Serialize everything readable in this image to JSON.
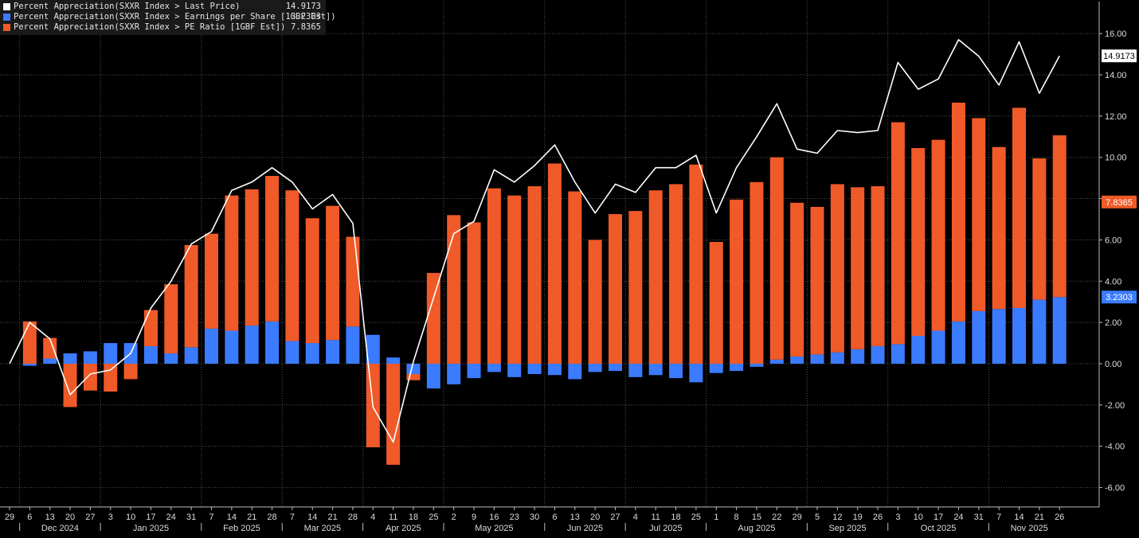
{
  "legend": [
    {
      "label": "Percent Appreciation(SXXR Index > Last Price)",
      "value": "14.9173",
      "color": "#ffffff"
    },
    {
      "label": "Percent Appreciation(SXXR Index > Earnings per Share [1GBF Est])",
      "value": "3.2303",
      "color": "#3b7bff"
    },
    {
      "label": "Percent Appreciation(SXXR Index > PE Ratio [1GBF Est])",
      "value": "7.8365",
      "color": "#ef5a28"
    }
  ],
  "chart_data": {
    "type": "bar",
    "stacked": true,
    "x": [
      "29",
      "6",
      "13",
      "20",
      "27",
      "3",
      "10",
      "17",
      "24",
      "31",
      "7",
      "14",
      "21",
      "28",
      "7",
      "14",
      "21",
      "28",
      "4",
      "11",
      "18",
      "25",
      "2",
      "9",
      "16",
      "23",
      "30",
      "6",
      "13",
      "20",
      "27",
      "4",
      "11",
      "18",
      "25",
      "1",
      "8",
      "15",
      "22",
      "29",
      "5",
      "12",
      "19",
      "26",
      "3",
      "10",
      "17",
      "24",
      "31",
      "7",
      "14",
      "21",
      "26"
    ],
    "month_labels": [
      {
        "label": "Dec 2024",
        "start": 1,
        "end": 4
      },
      {
        "label": "Jan 2025",
        "start": 5,
        "end": 9
      },
      {
        "label": "Feb 2025",
        "start": 10,
        "end": 13
      },
      {
        "label": "Mar 2025",
        "start": 14,
        "end": 17
      },
      {
        "label": "Apr 2025",
        "start": 18,
        "end": 21
      },
      {
        "label": "May 2025",
        "start": 22,
        "end": 26
      },
      {
        "label": "Jun 2025",
        "start": 27,
        "end": 30
      },
      {
        "label": "Jul 2025",
        "start": 31,
        "end": 34
      },
      {
        "label": "Aug 2025",
        "start": 35,
        "end": 39
      },
      {
        "label": "Sep 2025",
        "start": 40,
        "end": 43
      },
      {
        "label": "Oct 2025",
        "start": 44,
        "end": 48
      },
      {
        "label": "Nov 2025",
        "start": 49,
        "end": 52
      }
    ],
    "ylim": [
      -6.8,
      17.5
    ],
    "yticks": [
      "-6.00",
      "-4.00",
      "-2.00",
      "0.00",
      "2.00",
      "4.00",
      "6.00",
      "8.00",
      "10.00",
      "12.00",
      "14.00",
      "16.00"
    ],
    "series": [
      {
        "name": "Percent Appreciation(SXXR Index > Last Price)",
        "kind": "line",
        "color": "#ffffff",
        "values": [
          0,
          2.0,
          1.2,
          -1.5,
          -0.5,
          -0.3,
          0.5,
          2.7,
          4.0,
          5.8,
          6.4,
          8.4,
          8.8,
          9.5,
          8.8,
          7.5,
          8.2,
          6.8,
          -2.1,
          -3.8,
          0.1,
          3.2,
          6.3,
          6.9,
          9.4,
          8.8,
          9.6,
          10.6,
          8.8,
          7.3,
          8.7,
          8.3,
          9.5,
          9.5,
          10.1,
          7.3,
          9.5,
          11.0,
          12.6,
          10.4,
          10.2,
          11.3,
          11.2,
          11.3,
          14.6,
          13.3,
          13.8,
          15.7,
          14.9,
          13.5,
          15.6,
          13.1,
          14.9173
        ]
      },
      {
        "name": "Percent Appreciation(SXXR Index > Earnings per Share [1GBF Est])",
        "kind": "bar",
        "color": "#3b7bff",
        "values": [
          0,
          -0.1,
          0.25,
          0.5,
          0.6,
          1.0,
          1.0,
          0.85,
          0.5,
          0.8,
          1.7,
          1.6,
          1.85,
          2.05,
          1.1,
          1.0,
          1.15,
          1.8,
          1.4,
          0.3,
          -0.5,
          -1.2,
          -1.0,
          -0.7,
          -0.4,
          -0.65,
          -0.5,
          -0.55,
          -0.75,
          -0.4,
          -0.35,
          -0.65,
          -0.55,
          -0.7,
          -0.9,
          -0.45,
          -0.35,
          -0.15,
          0.2,
          0.35,
          0.45,
          0.55,
          0.7,
          0.85,
          0.95,
          1.35,
          1.6,
          2.05,
          2.55,
          2.65,
          2.7,
          3.1,
          3.2303
        ]
      },
      {
        "name": "Percent Appreciation(SXXR Index > PE Ratio [1GBF Est])",
        "kind": "bar",
        "color": "#ef5a28",
        "values": [
          0,
          2.05,
          1.0,
          -2.1,
          -1.3,
          -1.35,
          -0.75,
          1.75,
          3.35,
          4.95,
          4.6,
          6.55,
          6.6,
          7.05,
          7.3,
          6.05,
          6.5,
          4.35,
          -4.05,
          -4.9,
          -0.3,
          4.4,
          7.2,
          6.85,
          8.5,
          8.15,
          8.6,
          9.7,
          8.35,
          6.0,
          7.25,
          7.4,
          8.4,
          8.7,
          9.65,
          5.9,
          7.95,
          8.8,
          9.8,
          7.45,
          7.15,
          8.15,
          7.85,
          7.75,
          10.75,
          9.1,
          9.25,
          10.6,
          9.35,
          7.85,
          9.7,
          6.85,
          7.8365
        ]
      }
    ]
  }
}
